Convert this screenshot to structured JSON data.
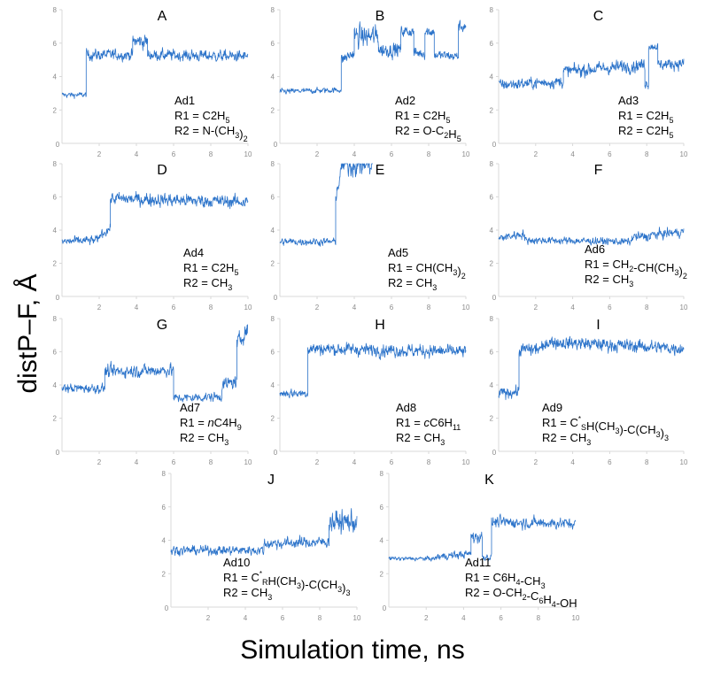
{
  "figure": {
    "ylabel": "distP–F, Å",
    "xlabel": "Simulation time, ns",
    "line_color": "#2a72c9",
    "axis_color": "#d9d9d9",
    "tick_color": "#8c8c8c"
  },
  "chart_data": [
    {
      "type": "line",
      "panel": "A",
      "title": "A",
      "label": [
        "Ad1",
        "R1 = C2H5",
        "R2 = N-(CH3)2"
      ],
      "xlim": [
        0,
        10
      ],
      "ylim": [
        0,
        8
      ],
      "xticks": [
        0,
        2,
        4,
        6,
        8,
        10
      ],
      "yticks": [
        2,
        4,
        6,
        8
      ],
      "xlabel": "Simulation time, ns",
      "ylabel": "distP–F, Å",
      "segments": [
        [
          0,
          1.3,
          2.9,
          2.9,
          0.15
        ],
        [
          1.3,
          3.8,
          5.3,
          5.3,
          0.3
        ],
        [
          3.8,
          4.6,
          6.1,
          6.1,
          0.4
        ],
        [
          4.6,
          10,
          5.3,
          5.2,
          0.3
        ]
      ]
    },
    {
      "type": "line",
      "panel": "B",
      "title": "B",
      "label": [
        "Ad2",
        "R1 = C2H5",
        "R2 = O-C2H5"
      ],
      "xlim": [
        0,
        10
      ],
      "ylim": [
        0,
        8
      ],
      "xticks": [
        0,
        2,
        4,
        6,
        8,
        10
      ],
      "yticks": [
        2,
        4,
        6,
        8
      ],
      "segments": [
        [
          0,
          3.3,
          3.1,
          3.2,
          0.15
        ],
        [
          3.3,
          4.0,
          5.0,
          5.4,
          0.3
        ],
        [
          4.0,
          5.3,
          6.4,
          6.4,
          0.6
        ],
        [
          5.3,
          6.5,
          5.6,
          5.6,
          0.4
        ],
        [
          6.5,
          7.2,
          6.7,
          6.7,
          0.3
        ],
        [
          7.2,
          7.8,
          5.4,
          5.4,
          0.3
        ],
        [
          7.8,
          8.3,
          6.7,
          6.7,
          0.3
        ],
        [
          8.3,
          9.6,
          5.3,
          5.2,
          0.25
        ],
        [
          9.6,
          10,
          7.0,
          7.0,
          0.3
        ]
      ]
    },
    {
      "type": "line",
      "panel": "C",
      "title": "C",
      "label": [
        "Ad3",
        "R1 = C2H5",
        "R2 = C2H5"
      ],
      "xlim": [
        0,
        10
      ],
      "ylim": [
        0,
        8
      ],
      "xticks": [
        0,
        2,
        4,
        6,
        8,
        10
      ],
      "yticks": [
        2,
        4,
        6,
        8
      ],
      "segments": [
        [
          0,
          3.5,
          3.5,
          3.7,
          0.3
        ],
        [
          3.5,
          7.9,
          4.3,
          4.7,
          0.35
        ],
        [
          7.9,
          8.1,
          3.6,
          3.6,
          0.3
        ],
        [
          8.1,
          8.6,
          5.8,
          5.8,
          0.2
        ],
        [
          8.6,
          10,
          4.7,
          4.8,
          0.3
        ]
      ]
    },
    {
      "type": "line",
      "panel": "D",
      "title": "D",
      "label": [
        "Ad4",
        "R1 = C2H5",
        "R2 = CH3"
      ],
      "xlim": [
        0,
        10
      ],
      "ylim": [
        0,
        8
      ],
      "xticks": [
        0,
        2,
        4,
        6,
        8,
        10
      ],
      "yticks": [
        2,
        4,
        6,
        8
      ],
      "segments": [
        [
          0,
          2.0,
          3.3,
          3.4,
          0.25
        ],
        [
          2.0,
          2.6,
          3.7,
          4.1,
          0.25
        ],
        [
          2.6,
          10,
          5.9,
          5.7,
          0.35
        ]
      ]
    },
    {
      "type": "line",
      "panel": "E",
      "title": "E",
      "label": [
        "Ad5",
        "R1 = CH(CH3)2",
        "R2 = CH3"
      ],
      "xlim": [
        0,
        10
      ],
      "ylim": [
        0,
        8
      ],
      "xticks": [
        0,
        2,
        4,
        6,
        8,
        10
      ],
      "yticks": [
        2,
        4,
        6,
        8
      ],
      "segments": [
        [
          0,
          3.0,
          3.3,
          3.3,
          0.2
        ],
        [
          3.0,
          3.3,
          6.0,
          7.5,
          0.4
        ],
        [
          3.3,
          5.0,
          8.0,
          8.0,
          0.7
        ]
      ]
    },
    {
      "type": "line",
      "panel": "F",
      "title": "F",
      "label": [
        "Ad6",
        "R1 = CH2-CH(CH3)2",
        "R2 = CH3"
      ],
      "xlim": [
        0,
        10
      ],
      "ylim": [
        0,
        8
      ],
      "xticks": [
        0,
        2,
        4,
        6,
        8,
        10
      ],
      "yticks": [
        2,
        4,
        6,
        8
      ],
      "segments": [
        [
          0,
          1.4,
          3.5,
          3.8,
          0.25
        ],
        [
          1.4,
          7.2,
          3.4,
          3.3,
          0.2
        ],
        [
          7.2,
          8.2,
          3.6,
          3.6,
          0.25
        ],
        [
          8.2,
          10,
          3.7,
          3.9,
          0.25
        ]
      ]
    },
    {
      "type": "line",
      "panel": "G",
      "title": "G",
      "label": [
        "Ad7",
        "R1 = nC4H9",
        "R2 = CH3"
      ],
      "xlim": [
        0,
        10
      ],
      "ylim": [
        0,
        8
      ],
      "xticks": [
        0,
        2,
        4,
        6,
        8,
        10
      ],
      "yticks": [
        2,
        4,
        6,
        8
      ],
      "segments": [
        [
          0,
          2.3,
          3.8,
          3.8,
          0.25
        ],
        [
          2.3,
          6.0,
          4.8,
          4.9,
          0.35
        ],
        [
          6.0,
          8.6,
          3.2,
          3.3,
          0.25
        ],
        [
          8.6,
          9.4,
          4.0,
          4.2,
          0.35
        ],
        [
          9.4,
          10,
          6.5,
          7.4,
          0.4
        ]
      ]
    },
    {
      "type": "line",
      "panel": "H",
      "title": "H",
      "label": [
        "Ad8",
        "R1 = cC6H11",
        "R2 = CH3"
      ],
      "xlim": [
        0,
        10
      ],
      "ylim": [
        0,
        8
      ],
      "xticks": [
        0,
        2,
        4,
        6,
        8,
        10
      ],
      "yticks": [
        2,
        4,
        6,
        8
      ],
      "segments": [
        [
          0,
          1.5,
          3.5,
          3.5,
          0.25
        ],
        [
          1.5,
          10,
          6.2,
          6.0,
          0.35
        ]
      ]
    },
    {
      "type": "line",
      "panel": "I",
      "title": "I",
      "label": [
        "Ad9",
        "R1 = C*SH(CH3)-C(CH3)3",
        "R2 = CH3"
      ],
      "xlim": [
        0,
        10
      ],
      "ylim": [
        0,
        8
      ],
      "xticks": [
        0,
        2,
        4,
        6,
        8,
        10
      ],
      "yticks": [
        2,
        4,
        6,
        8
      ],
      "segments": [
        [
          0,
          1.1,
          3.5,
          3.6,
          0.3
        ],
        [
          1.1,
          2.5,
          6.1,
          6.2,
          0.35
        ],
        [
          2.5,
          10,
          6.6,
          6.2,
          0.35
        ]
      ]
    },
    {
      "type": "line",
      "panel": "J",
      "title": "J",
      "label": [
        "Ad10",
        "R1 = C*RH(CH3)-C(CH3)3",
        "R2 = CH3"
      ],
      "xlim": [
        0,
        10
      ],
      "ylim": [
        0,
        8
      ],
      "xticks": [
        0,
        2,
        4,
        6,
        8,
        10
      ],
      "yticks": [
        2,
        4,
        6,
        8
      ],
      "segments": [
        [
          0,
          5.0,
          3.4,
          3.4,
          0.25
        ],
        [
          5.0,
          8.5,
          3.8,
          3.9,
          0.3
        ],
        [
          8.5,
          10,
          5.1,
          5.1,
          0.6
        ]
      ]
    },
    {
      "type": "line",
      "panel": "K",
      "title": "K",
      "label": [
        "Ad11",
        "R1 = C6H4-CH3",
        "R2 = O-CH2-C6H4-OH"
      ],
      "xlim": [
        0,
        10
      ],
      "ylim": [
        0,
        8
      ],
      "xticks": [
        0,
        2,
        4,
        6,
        8,
        10
      ],
      "yticks": [
        2,
        4,
        6,
        8
      ],
      "segments": [
        [
          0,
          2.5,
          2.9,
          2.9,
          0.12
        ],
        [
          2.5,
          4.4,
          3.0,
          3.2,
          0.2
        ],
        [
          4.4,
          5.0,
          4.2,
          4.2,
          0.35
        ],
        [
          5.0,
          5.5,
          3.0,
          3.0,
          0.2
        ],
        [
          5.5,
          10,
          5.1,
          5.0,
          0.3
        ]
      ]
    }
  ]
}
